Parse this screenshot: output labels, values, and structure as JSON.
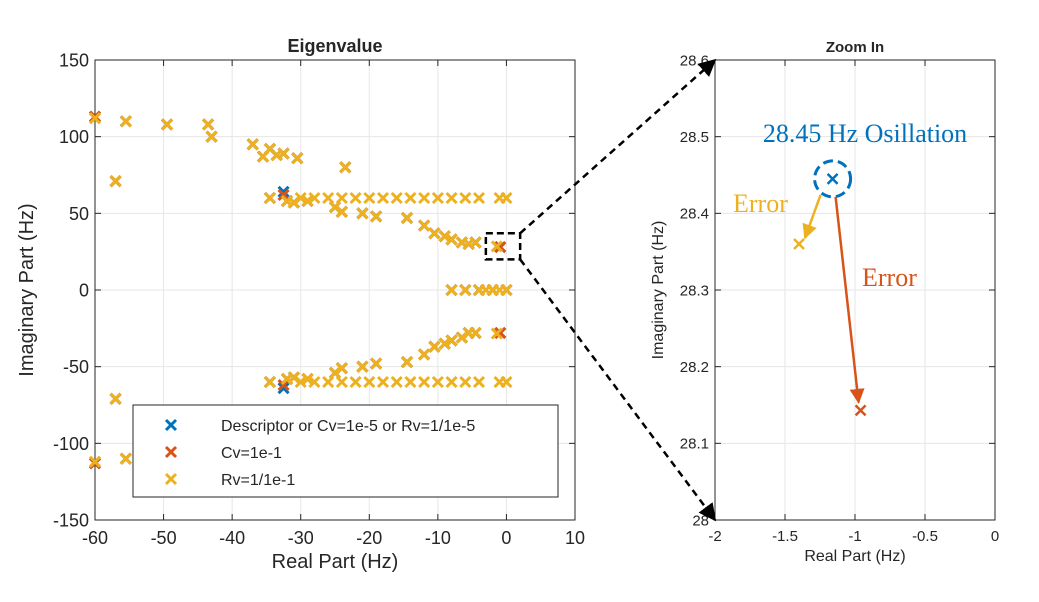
{
  "colors": {
    "descriptor": "#0072BD",
    "cv": "#D95319",
    "rv": "#EDB120",
    "axis": "#262626",
    "grid": "#e6e6e6"
  },
  "chart_data": [
    {
      "type": "scatter",
      "title": "Eigenvalue",
      "xlabel": "Real Part (Hz)",
      "ylabel": "Imaginary Part (Hz)",
      "xlim": [
        -60,
        10
      ],
      "ylim": [
        -150,
        150
      ],
      "xticks": [
        -60,
        -50,
        -40,
        -30,
        -20,
        -10,
        0,
        10
      ],
      "yticks": [
        -150,
        -100,
        -50,
        0,
        50,
        100,
        150
      ],
      "xtick_labels": [
        "-60",
        "-50",
        "-40",
        "-30",
        "-20",
        "-10",
        "0",
        "10"
      ],
      "ytick_labels": [
        "-150",
        "-100",
        "-50",
        "0",
        "50",
        "100",
        "150"
      ],
      "grid": true,
      "legend_position": "bottom-left",
      "marker": "x",
      "series": [
        {
          "name": "Descriptor or Cv=1e-5 or Rv=1/1e-5",
          "color": "#0072BD",
          "points": [
            [
              -60,
              113
            ],
            [
              -60,
              -113
            ],
            [
              -57,
              71
            ],
            [
              -57,
              -71
            ],
            [
              -55.5,
              110
            ],
            [
              -55.5,
              -110
            ],
            [
              -49.5,
              108
            ],
            [
              -43.5,
              108
            ],
            [
              -43,
              100
            ],
            [
              -37,
              95
            ],
            [
              -35.5,
              87
            ],
            [
              -34.5,
              92
            ],
            [
              -33.5,
              88
            ],
            [
              -32.5,
              89
            ],
            [
              -30.5,
              86
            ],
            [
              -23.5,
              80
            ],
            [
              -34.5,
              60
            ],
            [
              -32.5,
              64
            ],
            [
              -32,
              58
            ],
            [
              -31,
              57
            ],
            [
              -29,
              58
            ],
            [
              -25,
              54
            ],
            [
              -24,
              51
            ],
            [
              -21,
              50
            ],
            [
              -19,
              48
            ],
            [
              -14.5,
              47
            ],
            [
              -12,
              42
            ],
            [
              -10.5,
              37
            ],
            [
              -9,
              35
            ],
            [
              -8,
              33
            ],
            [
              -6.5,
              31
            ],
            [
              -5.5,
              30
            ],
            [
              -4.5,
              31
            ],
            [
              -0.9,
              28
            ],
            [
              -34.5,
              -60
            ],
            [
              -32.5,
              -64
            ],
            [
              -32,
              -58
            ],
            [
              -31,
              -57
            ],
            [
              -29,
              -58
            ],
            [
              -25,
              -54
            ],
            [
              -24,
              -51
            ],
            [
              -21,
              -50
            ],
            [
              -19,
              -48
            ],
            [
              -14.5,
              -47
            ],
            [
              -12,
              -42
            ],
            [
              -10.5,
              -37
            ],
            [
              -9,
              -35
            ],
            [
              -8,
              -33
            ],
            [
              -6.5,
              -31
            ],
            [
              -5.5,
              -28
            ],
            [
              -4.5,
              -28
            ],
            [
              -0.9,
              -28
            ],
            [
              -8,
              0
            ],
            [
              -6,
              0
            ],
            [
              -4,
              0
            ],
            [
              -2,
              0
            ],
            [
              0,
              0
            ]
          ]
        },
        {
          "name": "Cv=1e-1",
          "color": "#D95319",
          "points": [
            [
              -60,
              113
            ],
            [
              -60,
              -113
            ],
            [
              -57,
              71
            ],
            [
              -57,
              -71
            ],
            [
              -55.5,
              110
            ],
            [
              -55.5,
              -110
            ],
            [
              -49.5,
              108
            ],
            [
              -43.5,
              108
            ],
            [
              -43,
              100
            ],
            [
              -37,
              95
            ],
            [
              -35.5,
              87
            ],
            [
              -34.5,
              92
            ],
            [
              -33.5,
              88
            ],
            [
              -32.5,
              89
            ],
            [
              -30.5,
              86
            ],
            [
              -23.5,
              80
            ],
            [
              -34.5,
              60
            ],
            [
              -32.5,
              62
            ],
            [
              -32,
              58
            ],
            [
              -31,
              57
            ],
            [
              -29,
              58
            ],
            [
              -25,
              54
            ],
            [
              -24,
              51
            ],
            [
              -21,
              50
            ],
            [
              -19,
              48
            ],
            [
              -14.5,
              47
            ],
            [
              -12,
              42
            ],
            [
              -10.5,
              37
            ],
            [
              -9,
              35
            ],
            [
              -8,
              33
            ],
            [
              -6.5,
              31
            ],
            [
              -5.5,
              30
            ],
            [
              -4.5,
              31
            ],
            [
              -0.9,
              28
            ],
            [
              -34.5,
              -60
            ],
            [
              -32.5,
              -62
            ],
            [
              -32,
              -58
            ],
            [
              -31,
              -57
            ],
            [
              -29,
              -58
            ],
            [
              -25,
              -54
            ],
            [
              -24,
              -51
            ],
            [
              -21,
              -50
            ],
            [
              -19,
              -48
            ],
            [
              -14.5,
              -47
            ],
            [
              -12,
              -42
            ],
            [
              -10.5,
              -37
            ],
            [
              -9,
              -35
            ],
            [
              -8,
              -33
            ],
            [
              -6.5,
              -31
            ],
            [
              -5.5,
              -28
            ],
            [
              -4.5,
              -28
            ],
            [
              -0.9,
              -28
            ],
            [
              -8,
              0
            ],
            [
              -6,
              0
            ],
            [
              -4,
              0
            ],
            [
              -2,
              0
            ],
            [
              0,
              0
            ]
          ]
        },
        {
          "name": "Rv=1/1e-1",
          "color": "#EDB120",
          "points": [
            [
              -60,
              112
            ],
            [
              -60,
              -112
            ],
            [
              -57,
              71
            ],
            [
              -57,
              -71
            ],
            [
              -55.5,
              110
            ],
            [
              -55.5,
              -110
            ],
            [
              -49.5,
              108
            ],
            [
              -43.5,
              108
            ],
            [
              -43,
              100
            ],
            [
              -37,
              95
            ],
            [
              -35.5,
              87
            ],
            [
              -34.5,
              92
            ],
            [
              -33.5,
              88
            ],
            [
              -32.5,
              89
            ],
            [
              -30.5,
              86
            ],
            [
              -23.5,
              80
            ],
            [
              -34.5,
              60
            ],
            [
              -32,
              58
            ],
            [
              -31,
              57
            ],
            [
              -29,
              58
            ],
            [
              -30,
              60
            ],
            [
              -28,
              60
            ],
            [
              -26,
              60
            ],
            [
              -24,
              60
            ],
            [
              -22,
              60
            ],
            [
              -20,
              60
            ],
            [
              -18,
              60
            ],
            [
              -16,
              60
            ],
            [
              -14,
              60
            ],
            [
              -12,
              60
            ],
            [
              -10,
              60
            ],
            [
              -8,
              60
            ],
            [
              -6,
              60
            ],
            [
              -4,
              60
            ],
            [
              -1,
              60
            ],
            [
              0,
              60
            ],
            [
              -25,
              54
            ],
            [
              -24,
              51
            ],
            [
              -21,
              50
            ],
            [
              -19,
              48
            ],
            [
              -14.5,
              47
            ],
            [
              -12,
              42
            ],
            [
              -10.5,
              37
            ],
            [
              -9,
              35
            ],
            [
              -8,
              33
            ],
            [
              -6.5,
              31
            ],
            [
              -5.5,
              30
            ],
            [
              -4.5,
              31
            ],
            [
              -1.4,
              28.4
            ],
            [
              -34.5,
              -60
            ],
            [
              -32,
              -58
            ],
            [
              -31,
              -57
            ],
            [
              -29,
              -58
            ],
            [
              -30,
              -60
            ],
            [
              -28,
              -60
            ],
            [
              -26,
              -60
            ],
            [
              -24,
              -60
            ],
            [
              -22,
              -60
            ],
            [
              -20,
              -60
            ],
            [
              -18,
              -60
            ],
            [
              -16,
              -60
            ],
            [
              -14,
              -60
            ],
            [
              -12,
              -60
            ],
            [
              -10,
              -60
            ],
            [
              -8,
              -60
            ],
            [
              -6,
              -60
            ],
            [
              -4,
              -60
            ],
            [
              -1,
              -60
            ],
            [
              0,
              -60
            ],
            [
              -25,
              -54
            ],
            [
              -24,
              -51
            ],
            [
              -21,
              -50
            ],
            [
              -19,
              -48
            ],
            [
              -14.5,
              -47
            ],
            [
              -12,
              -42
            ],
            [
              -10.5,
              -37
            ],
            [
              -9,
              -35
            ],
            [
              -8,
              -33
            ],
            [
              -6.5,
              -31
            ],
            [
              -5.5,
              -28
            ],
            [
              -4.5,
              -28
            ],
            [
              -1.4,
              -28.4
            ],
            [
              -8,
              0
            ],
            [
              -6,
              0
            ],
            [
              -4,
              0
            ],
            [
              -3,
              0
            ],
            [
              -2,
              0
            ],
            [
              -1,
              0
            ],
            [
              0,
              0
            ]
          ]
        }
      ],
      "zoom_box": {
        "x": [
          -3,
          2
        ],
        "y": [
          20,
          37
        ]
      }
    },
    {
      "type": "scatter",
      "title": "Zoom In",
      "xlabel": "Real Part (Hz)",
      "ylabel": "Imaginary Part (Hz)",
      "xlim": [
        -2,
        0
      ],
      "ylim": [
        28,
        28.6
      ],
      "xticks": [
        -2,
        -1.5,
        -1,
        -0.5,
        0
      ],
      "yticks": [
        28,
        28.1,
        28.2,
        28.3,
        28.4,
        28.5,
        28.6
      ],
      "xtick_labels": [
        "-2",
        "-1.5",
        "-1",
        "-0.5",
        "0"
      ],
      "ytick_labels": [
        "28",
        "28.1",
        "28.2",
        "28.3",
        "28.4",
        "28.5",
        "28.6"
      ],
      "grid": true,
      "marker": "x",
      "series": [
        {
          "color": "#0072BD",
          "points": [
            [
              -1.16,
              28.445
            ]
          ]
        },
        {
          "color": "#D95319",
          "points": [
            [
              -0.96,
              28.143
            ]
          ]
        },
        {
          "color": "#EDB120",
          "points": [
            [
              -1.4,
              28.36
            ]
          ]
        }
      ],
      "annotations": [
        {
          "text": "28.45 Hz Osillation",
          "color": "#0072BD",
          "x": -1.16,
          "y": 28.445
        },
        {
          "text": "Error",
          "color": "#EDB120",
          "from": [
            -1.16,
            28.445
          ],
          "to": [
            -1.4,
            28.36
          ]
        },
        {
          "text": "Error",
          "color": "#D95319",
          "from": [
            -1.16,
            28.445
          ],
          "to": [
            -0.96,
            28.143
          ]
        }
      ]
    }
  ]
}
